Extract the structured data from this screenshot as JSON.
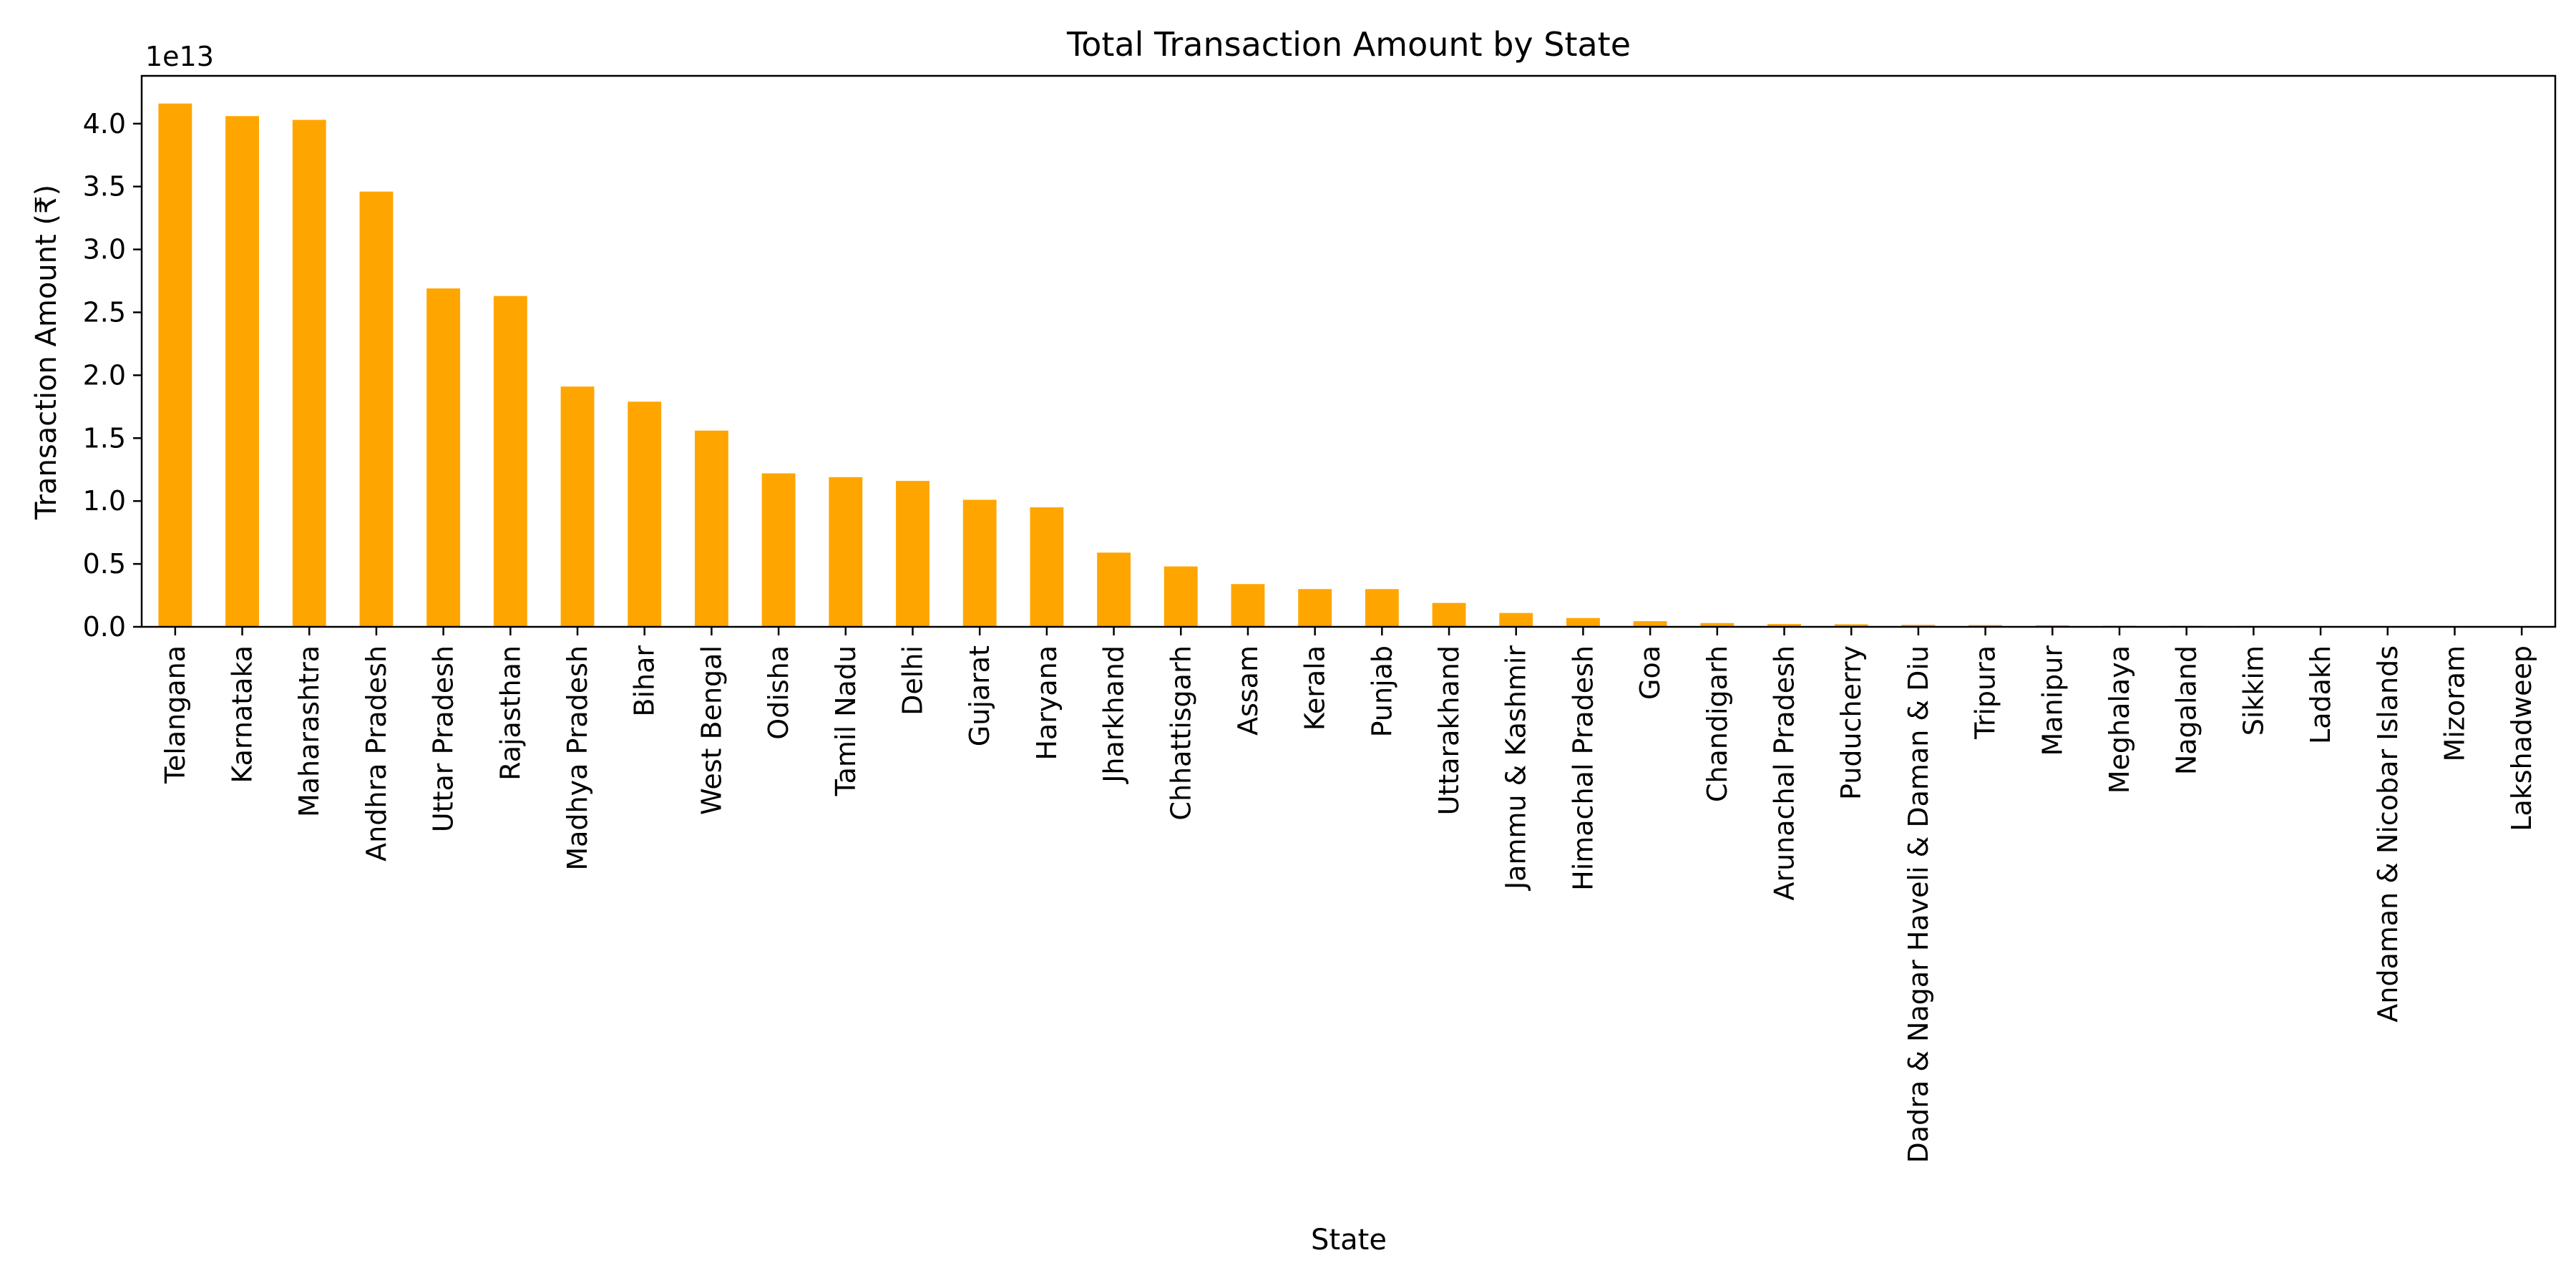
{
  "chart_data": {
    "type": "bar",
    "title": "Total Transaction Amount by State",
    "xlabel": "State",
    "ylabel": "Transaction Amount (₹)",
    "y_offset_label": "1e13",
    "ylim": [
      0,
      4.38
    ],
    "y_ticks": [
      0.0,
      0.5,
      1.0,
      1.5,
      2.0,
      2.5,
      3.0,
      3.5,
      4.0
    ],
    "y_tick_labels": [
      "0.0",
      "0.5",
      "1.0",
      "1.5",
      "2.0",
      "2.5",
      "3.0",
      "3.5",
      "4.0"
    ],
    "bar_color": "#FFA500",
    "grid": false,
    "categories": [
      "Telangana",
      "Karnataka",
      "Maharashtra",
      "Andhra Pradesh",
      "Uttar Pradesh",
      "Rajasthan",
      "Madhya Pradesh",
      "Bihar",
      "West Bengal",
      "Odisha",
      "Tamil Nadu",
      "Delhi",
      "Gujarat",
      "Haryana",
      "Jharkhand",
      "Chhattisgarh",
      "Assam",
      "Kerala",
      "Punjab",
      "Uttarakhand",
      "Jammu & Kashmir",
      "Himachal Pradesh",
      "Goa",
      "Chandigarh",
      "Arunachal Pradesh",
      "Puducherry",
      "Dadra & Nagar Haveli & Daman & Diu",
      "Tripura",
      "Manipur",
      "Meghalaya",
      "Nagaland",
      "Sikkim",
      "Ladakh",
      "Andaman & Nicobar Islands",
      "Mizoram",
      "Lakshadweep"
    ],
    "values": [
      4.16,
      4.06,
      4.03,
      3.46,
      2.69,
      2.63,
      1.91,
      1.79,
      1.56,
      1.22,
      1.19,
      1.16,
      1.01,
      0.95,
      0.59,
      0.48,
      0.34,
      0.3,
      0.3,
      0.19,
      0.11,
      0.07,
      0.045,
      0.03,
      0.022,
      0.02,
      0.016,
      0.014,
      0.012,
      0.009,
      0.008,
      0.007,
      0.004,
      0.003,
      0.002,
      0.001
    ]
  }
}
